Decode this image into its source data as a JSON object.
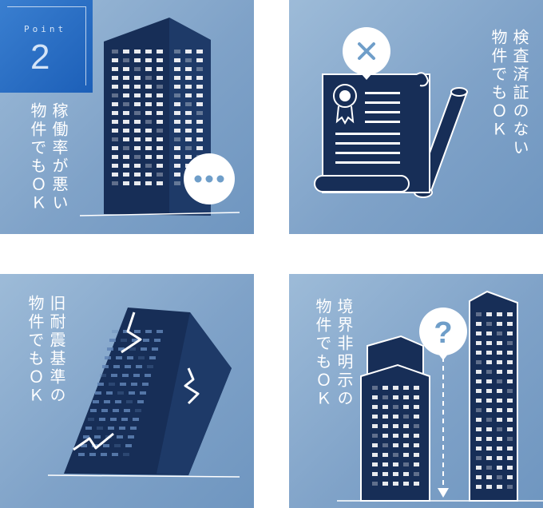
{
  "badge": {
    "word": "Point",
    "number": "2"
  },
  "panels": [
    {
      "line1": "稼働率が悪い",
      "line2": "物件でもＯＫ",
      "icon": "ellipsis-bubble-icon"
    },
    {
      "line1": "検査済証のない",
      "line2": "物件でもＯＫ",
      "icon": "cross-bubble-icon"
    },
    {
      "line1": "旧耐震基準の",
      "line2": "物件でもＯＫ",
      "icon": "cracked-building-icon"
    },
    {
      "line1": "境界非明示の",
      "line2": "物件でもＯＫ",
      "icon": "question-bubble-icon"
    }
  ],
  "colors": {
    "navy": "#172e57",
    "panel": "#7fa2c8",
    "badge": "#1c5fb8"
  }
}
